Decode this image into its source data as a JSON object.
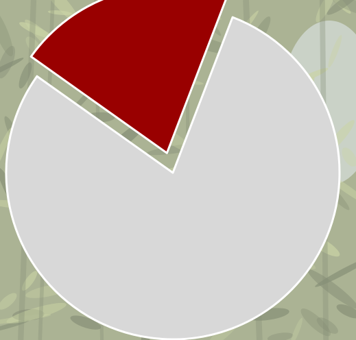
{
  "chart_data": {
    "type": "pie",
    "title": "",
    "legend": "none",
    "slices": [
      {
        "label": "",
        "value": 79,
        "color": "#d8d8d8",
        "exploded": false
      },
      {
        "label": "",
        "value": 21,
        "color": "#990000",
        "exploded": true
      }
    ],
    "start_angle_deg": 21,
    "stroke_color": "#ffffff"
  },
  "background": {
    "description_icon": "bamboo-foliage-photo",
    "base_color": "#8f9a70",
    "leaf_color": "#b8c487",
    "shade_color": "#5f6a4a",
    "sky_color": "#dce6ee"
  }
}
